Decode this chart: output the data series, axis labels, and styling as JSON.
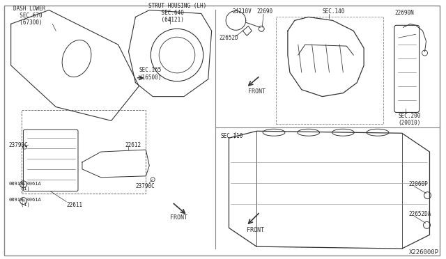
{
  "bg_color": "#ffffff",
  "line_color": "#333333",
  "label_color": "#222222",
  "fig_width": 6.4,
  "fig_height": 3.72,
  "dpi": 100,
  "border_color": "#aaaaaa",
  "title_bottom": "X226000P",
  "labels": {
    "dash_lower": "DASH LOWER\n  SEC.670\n  (67300)",
    "strut_housing": "STRUT HOUSING (LH)\n    SEC.640\n    (64121)",
    "sec165": "SEC.165\n(16500)",
    "sec22612": "22612",
    "sec23790c_left": "23790C",
    "sec23790c_right": "23790C",
    "sec22611": "22611",
    "bolt1": "08918-3061A\n    (1)",
    "bolt2": "08918-3061A\n    (1)",
    "front_lower_left": "FRONT",
    "sec24210v": "24210V",
    "sec22690": "22690",
    "sec22652d": "22652D",
    "sec140": "SEC.140",
    "sec22690n": "22690N",
    "sec200": "SEC.200\n(20010)",
    "front_upper_right": "FRONT",
    "sec110": "SEC.110",
    "sec22060p": "22060P",
    "sec22652da": "22652DA",
    "front_lower_right": "FRONT"
  }
}
